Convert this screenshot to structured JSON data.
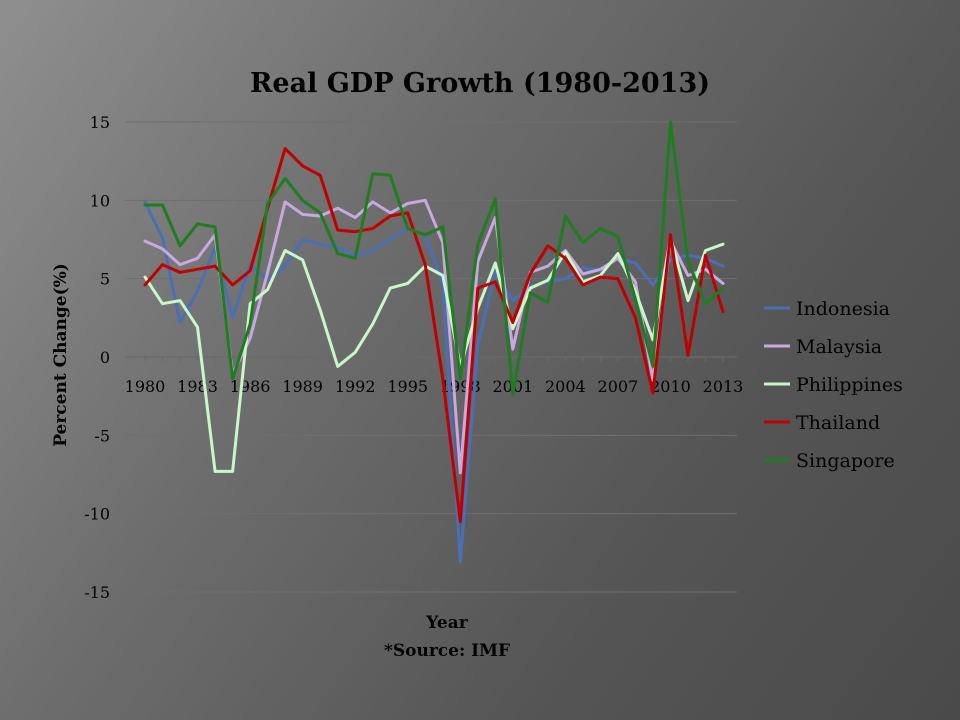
{
  "chart_data": {
    "type": "line",
    "title": "Real GDP Growth (1980-2013)",
    "xlabel": "Year",
    "ylabel": "Percent Change(%)",
    "source_note": "*Source: IMF",
    "ylim": [
      -15,
      15
    ],
    "yticks": [
      -15,
      -10,
      -5,
      0,
      5,
      10,
      15
    ],
    "x": [
      1980,
      1981,
      1982,
      1983,
      1984,
      1985,
      1986,
      1987,
      1988,
      1989,
      1990,
      1991,
      1992,
      1993,
      1994,
      1995,
      1996,
      1997,
      1998,
      1999,
      2000,
      2001,
      2002,
      2003,
      2004,
      2005,
      2006,
      2007,
      2008,
      2009,
      2010,
      2011,
      2012,
      2013
    ],
    "xtick_labels": [
      "1980",
      "1983",
      "1986",
      "1989",
      "1992",
      "1995",
      "1998",
      "2001",
      "2004",
      "2007",
      "2010",
      "2013"
    ],
    "legend_position": "right",
    "grid": true,
    "series": [
      {
        "name": "Indonesia",
        "color": "#4a6fb5",
        "values": [
          9.9,
          7.6,
          2.2,
          4.2,
          7.0,
          2.5,
          5.9,
          4.9,
          5.8,
          7.5,
          7.2,
          7.0,
          6.5,
          6.8,
          7.5,
          8.2,
          7.8,
          4.7,
          -13.1,
          0.8,
          5.4,
          3.6,
          4.5,
          4.8,
          5.0,
          5.7,
          5.5,
          6.3,
          6.0,
          4.6,
          6.2,
          6.5,
          6.3,
          5.8
        ]
      },
      {
        "name": "Malaysia",
        "color": "#c8a8e0",
        "values": [
          7.4,
          6.9,
          5.9,
          6.3,
          7.8,
          -1.1,
          1.2,
          5.4,
          9.9,
          9.1,
          9.0,
          9.5,
          8.9,
          9.9,
          9.2,
          9.8,
          10.0,
          7.3,
          -7.4,
          6.1,
          8.9,
          0.5,
          5.4,
          5.8,
          6.8,
          5.3,
          5.6,
          6.3,
          4.8,
          -1.5,
          7.4,
          5.2,
          5.6,
          4.7
        ]
      },
      {
        "name": "Philippines",
        "color": "#c8f7c8",
        "values": [
          5.1,
          3.4,
          3.6,
          1.9,
          -7.3,
          -7.3,
          3.4,
          4.3,
          6.8,
          6.2,
          3.0,
          -0.6,
          0.3,
          2.1,
          4.4,
          4.7,
          5.8,
          5.2,
          -0.6,
          3.1,
          6.0,
          1.8,
          4.4,
          4.9,
          6.7,
          4.8,
          5.2,
          6.6,
          4.2,
          1.1,
          7.6,
          3.6,
          6.8,
          7.2
        ]
      },
      {
        "name": "Thailand",
        "color": "#c00000",
        "values": [
          4.6,
          5.9,
          5.4,
          5.6,
          5.8,
          4.6,
          5.5,
          9.5,
          13.3,
          12.2,
          11.6,
          8.1,
          8.0,
          8.2,
          9.0,
          9.2,
          5.9,
          -1.4,
          -10.5,
          4.4,
          4.8,
          2.2,
          5.3,
          7.1,
          6.3,
          4.6,
          5.1,
          5.0,
          2.5,
          -2.3,
          7.8,
          0.1,
          6.5,
          2.9
        ]
      },
      {
        "name": "Singapore",
        "color": "#1e7d1e",
        "values": [
          9.7,
          9.7,
          7.1,
          8.5,
          8.3,
          -1.4,
          2.1,
          9.8,
          11.4,
          10.0,
          9.2,
          6.6,
          6.3,
          11.7,
          11.6,
          8.2,
          7.8,
          8.3,
          -1.4,
          7.2,
          10.1,
          -2.4,
          4.1,
          3.5,
          9.0,
          7.3,
          8.2,
          7.7,
          3.7,
          -0.6,
          15.2,
          6.1,
          3.4,
          4.4
        ]
      }
    ]
  }
}
